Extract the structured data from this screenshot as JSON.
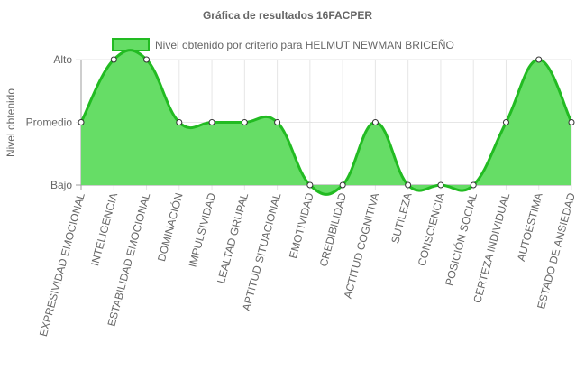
{
  "chart_data": {
    "type": "area",
    "title": "Gráfica de resultados 16FACPER",
    "ylabel": "Nivel obtenido",
    "xlabel": "",
    "y_levels": [
      "Bajo",
      "Promedio",
      "Alto"
    ],
    "ylim": [
      0,
      2
    ],
    "grid": true,
    "legend_position": "top",
    "categories": [
      "EXPRESIVIDAD EMOCIONAL",
      "INTELIGENCIA",
      "ESTABILIDAD EMOCIONAL",
      "DOMINACIÓN",
      "IMPULSIVIDAD",
      "LEALTAD GRUPAL",
      "APTITUD SITUACIONAL",
      "EMOTIVIDAD",
      "CREDIBILIDAD",
      "ACTITUD COGNITIVA",
      "SUTILEZA",
      "CONSCIENCIA",
      "POSICIÓN SOCIAL",
      "CERTEZA INDIVIDUAL",
      "AUTOESTIMA",
      "ESTADO DE ANSIEDAD"
    ],
    "series": [
      {
        "name": "Nivel obtenido por criterio para HELMUT NEWMAN BRICEÑO",
        "values": [
          1,
          2,
          2,
          1,
          1,
          1,
          1,
          0,
          0,
          1,
          0,
          0,
          0,
          1,
          2,
          1
        ],
        "fill": "#66dd66",
        "stroke": "#22bb22"
      }
    ]
  }
}
